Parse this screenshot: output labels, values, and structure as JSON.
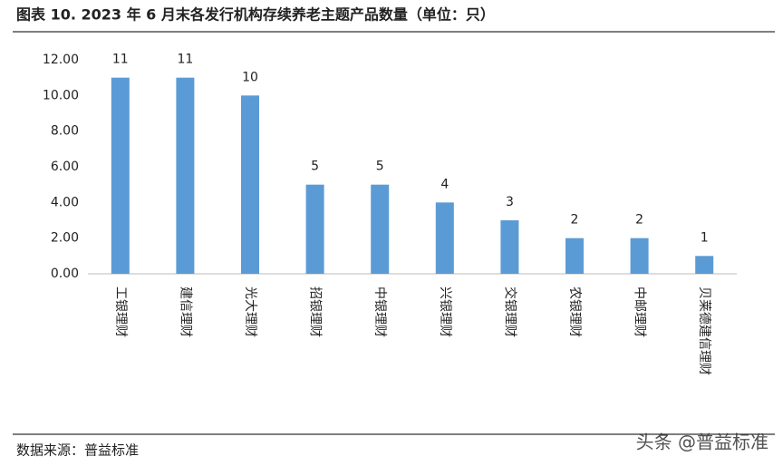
{
  "chart_data": {
    "type": "bar",
    "title": "图表 10. 2023 年 6 月末各发行机构存续养老主题产品数量（单位：只）",
    "categories": [
      "工银理财",
      "建信理财",
      "光大理财",
      "招银理财",
      "中银理财",
      "兴银理财",
      "交银理财",
      "农银理财",
      "中邮理财",
      "贝莱德建信理财"
    ],
    "values": [
      11,
      11,
      10,
      5,
      5,
      4,
      3,
      2,
      2,
      1
    ],
    "color": "#5b9bd5",
    "ylim": [
      0,
      12
    ],
    "yticks": [
      {
        "value": 0,
        "label": "0.00"
      },
      {
        "value": 2,
        "label": "2.00"
      },
      {
        "value": 4,
        "label": "4.00"
      },
      {
        "value": 6,
        "label": "6.00"
      },
      {
        "value": 8,
        "label": "8.00"
      },
      {
        "value": 10,
        "label": "10.00"
      },
      {
        "value": 12,
        "label": "12.00"
      }
    ],
    "grid": false,
    "source": "数据来源：普益标准",
    "watermark": "头条 @普益标准"
  }
}
